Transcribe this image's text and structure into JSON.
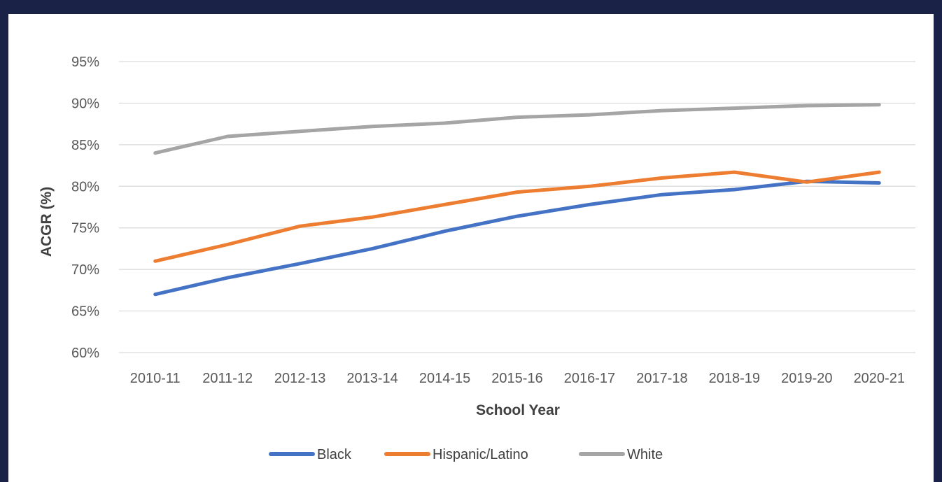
{
  "chart_data": {
    "type": "line",
    "title": "",
    "xlabel": "School Year",
    "ylabel": "ACGR (%)",
    "ylim": [
      60,
      95
    ],
    "yticks": [
      60,
      65,
      70,
      75,
      80,
      85,
      90,
      95
    ],
    "ytick_labels": [
      "60%",
      "65%",
      "70%",
      "75%",
      "80%",
      "85%",
      "90%",
      "95%"
    ],
    "grid": true,
    "legend_position": "bottom",
    "categories": [
      "2010-11",
      "2011-12",
      "2012-13",
      "2013-14",
      "2014-15",
      "2015-16",
      "2016-17",
      "2017-18",
      "2018-19",
      "2019-20",
      "2020-21"
    ],
    "series": [
      {
        "name": "Black",
        "color": "#4472c4",
        "values": [
          67.0,
          69.0,
          70.7,
          72.5,
          74.6,
          76.4,
          77.8,
          79.0,
          79.6,
          80.6,
          80.4
        ]
      },
      {
        "name": "Hispanic/Latino",
        "color": "#ed7d31",
        "values": [
          71.0,
          73.0,
          75.2,
          76.3,
          77.8,
          79.3,
          80.0,
          81.0,
          81.7,
          80.5,
          81.7
        ]
      },
      {
        "name": "White",
        "color": "#a5a5a5",
        "values": [
          84.0,
          86.0,
          86.6,
          87.2,
          87.6,
          88.3,
          88.6,
          89.1,
          89.4,
          89.7,
          89.8
        ]
      }
    ]
  }
}
